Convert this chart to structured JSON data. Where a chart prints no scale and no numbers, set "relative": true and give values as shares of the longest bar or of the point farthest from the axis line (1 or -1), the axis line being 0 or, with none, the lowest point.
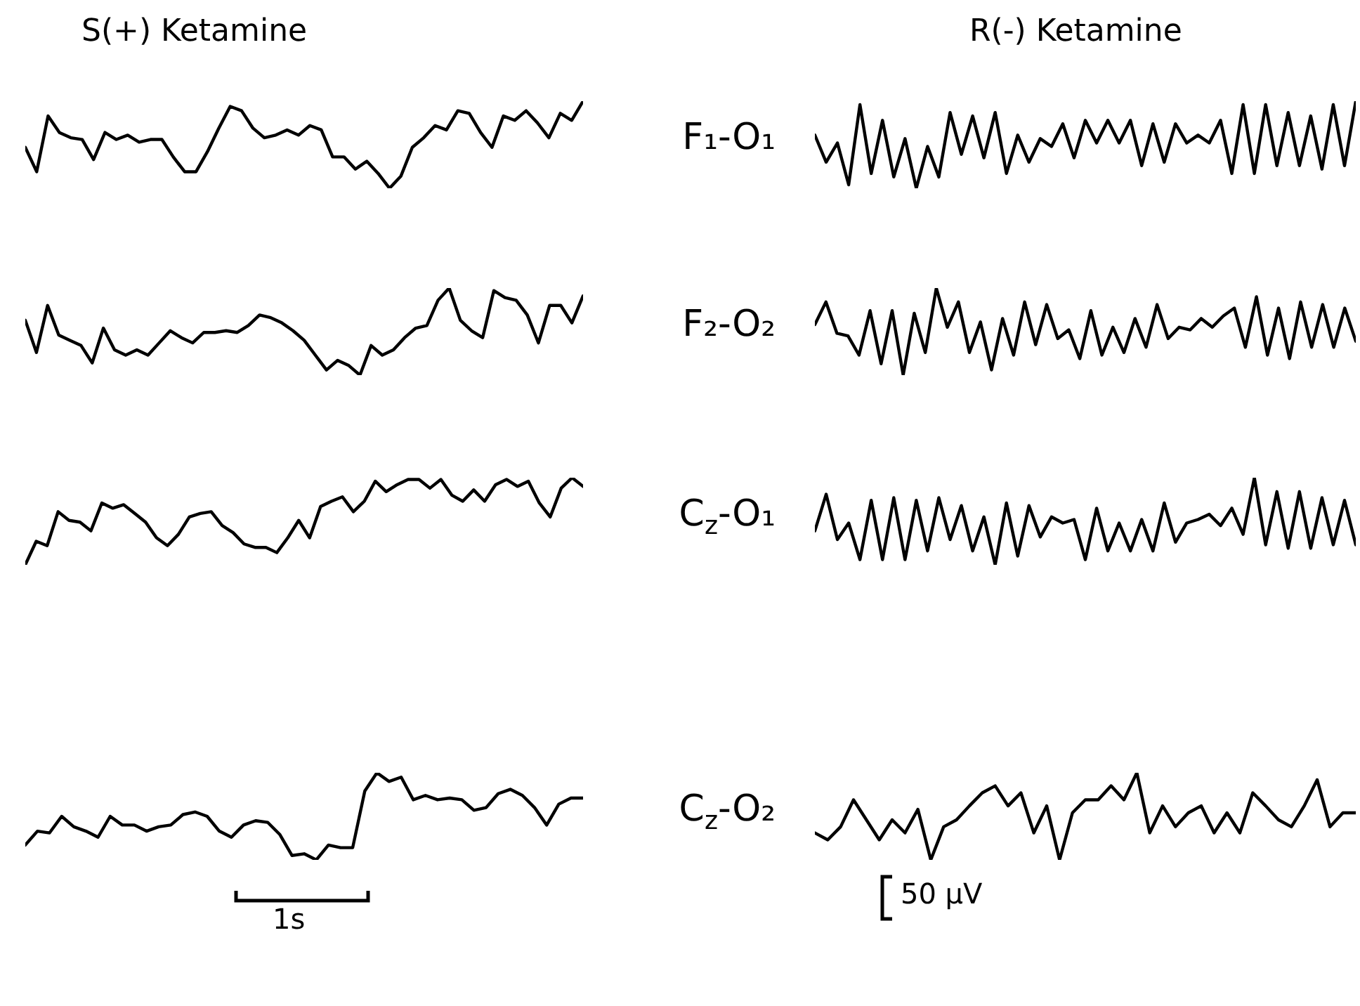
{
  "chart_data": [
    {
      "type": "line",
      "title": "S(+) Ketamine",
      "relative": true,
      "categories": [
        null,
        null,
        null,
        null,
        null,
        null,
        null,
        null,
        null,
        null,
        null,
        null,
        null,
        null,
        null,
        null,
        null,
        null,
        null,
        null,
        null,
        null,
        null,
        null,
        null,
        null,
        null,
        null,
        null,
        null,
        null,
        null,
        null,
        null,
        null,
        null,
        null,
        null,
        null,
        null,
        null,
        null,
        null,
        null,
        null,
        null,
        null,
        null,
        null,
        null
      ],
      "series": [
        {
          "color": "#000000",
          "values": [
            0.47,
            0.19,
            0.83,
            0.64,
            0.58,
            0.56,
            0.33,
            0.64,
            0.56,
            0.61,
            0.53,
            0.56,
            0.56,
            0.36,
            0.19,
            0.19,
            0.42,
            0.69,
            0.94,
            0.89,
            0.69,
            0.58,
            0.61,
            0.67,
            0.61,
            0.72,
            0.67,
            0.36,
            0.36,
            0.22,
            0.31,
            0.17,
            0,
            0.14,
            0.47,
            0.58,
            0.72,
            0.67,
            0.89,
            0.86,
            0.64,
            0.47,
            0.83,
            0.78,
            0.89,
            0.75,
            0.58,
            0.86,
            0.78,
            1
          ]
        }
      ]
    },
    {
      "type": "line",
      "title": "R(-) Ketamine",
      "ylabel": "F₁-O₁",
      "relative": true,
      "categories": [
        null,
        null,
        null,
        null,
        null,
        null,
        null,
        null,
        null,
        null,
        null,
        null,
        null,
        null,
        null,
        null,
        null,
        null,
        null,
        null,
        null,
        null,
        null,
        null,
        null,
        null,
        null,
        null,
        null,
        null,
        null,
        null,
        null,
        null,
        null,
        null,
        null,
        null,
        null,
        null,
        null,
        null,
        null,
        null,
        null,
        null,
        null,
        null,
        null
      ],
      "series": [
        {
          "color": "#000000",
          "values": [
            0.61,
            0.3,
            0.52,
            0.04,
            0.96,
            0.17,
            0.78,
            0.13,
            0.57,
            0,
            0.48,
            0.13,
            0.87,
            0.39,
            0.83,
            0.35,
            0.87,
            0.17,
            0.61,
            0.3,
            0.57,
            0.48,
            0.74,
            0.35,
            0.78,
            0.52,
            0.78,
            0.52,
            0.78,
            0.26,
            0.74,
            0.3,
            0.74,
            0.52,
            0.61,
            0.52,
            0.78,
            0.17,
            0.96,
            0.17,
            0.96,
            0.26,
            0.87,
            0.26,
            0.83,
            0.22,
            0.96,
            0.26,
            1
          ]
        }
      ]
    },
    {
      "type": "line",
      "relative": true,
      "categories": [
        null,
        null,
        null,
        null,
        null,
        null,
        null,
        null,
        null,
        null,
        null,
        null,
        null,
        null,
        null,
        null,
        null,
        null,
        null,
        null,
        null,
        null,
        null,
        null,
        null,
        null,
        null,
        null,
        null,
        null,
        null,
        null,
        null,
        null,
        null,
        null,
        null,
        null,
        null,
        null,
        null,
        null,
        null,
        null,
        null,
        null,
        null,
        null,
        null,
        null,
        null
      ],
      "series": [
        {
          "color": "#000000",
          "values": [
            0.63,
            0.26,
            0.8,
            0.46,
            0.4,
            0.34,
            0.14,
            0.54,
            0.29,
            0.23,
            0.29,
            0.23,
            0.37,
            0.51,
            0.43,
            0.37,
            0.49,
            0.49,
            0.51,
            0.49,
            0.57,
            0.69,
            0.66,
            0.6,
            0.51,
            0.4,
            0.23,
            0.06,
            0.17,
            0.11,
            0,
            0.34,
            0.23,
            0.29,
            0.43,
            0.54,
            0.57,
            0.86,
            1,
            0.63,
            0.51,
            0.43,
            0.97,
            0.89,
            0.86,
            0.69,
            0.37,
            0.8,
            0.8,
            0.6,
            0.91
          ]
        }
      ]
    },
    {
      "type": "line",
      "ylabel": "F₂-O₂",
      "relative": true,
      "categories": [
        null,
        null,
        null,
        null,
        null,
        null,
        null,
        null,
        null,
        null,
        null,
        null,
        null,
        null,
        null,
        null,
        null,
        null,
        null,
        null,
        null,
        null,
        null,
        null,
        null,
        null,
        null,
        null,
        null,
        null,
        null,
        null,
        null,
        null,
        null,
        null,
        null,
        null,
        null,
        null,
        null,
        null,
        null,
        null,
        null,
        null,
        null,
        null,
        null,
        null
      ],
      "series": [
        {
          "color": "#000000",
          "values": [
            0.58,
            0.84,
            0.48,
            0.45,
            0.23,
            0.74,
            0.13,
            0.74,
            0,
            0.71,
            0.26,
            1,
            0.55,
            0.84,
            0.26,
            0.61,
            0.06,
            0.65,
            0.23,
            0.84,
            0.35,
            0.81,
            0.42,
            0.52,
            0.19,
            0.74,
            0.23,
            0.55,
            0.26,
            0.65,
            0.32,
            0.81,
            0.42,
            0.55,
            0.52,
            0.65,
            0.55,
            0.68,
            0.77,
            0.32,
            0.9,
            0.23,
            0.77,
            0.19,
            0.84,
            0.32,
            0.81,
            0.32,
            0.77,
            0.39
          ]
        }
      ]
    },
    {
      "type": "line",
      "relative": true,
      "categories": [
        null,
        null,
        null,
        null,
        null,
        null,
        null,
        null,
        null,
        null,
        null,
        null,
        null,
        null,
        null,
        null,
        null,
        null,
        null,
        null,
        null,
        null,
        null,
        null,
        null,
        null,
        null,
        null,
        null,
        null,
        null,
        null,
        null,
        null,
        null,
        null,
        null,
        null,
        null,
        null,
        null,
        null,
        null,
        null,
        null,
        null,
        null,
        null,
        null,
        null,
        null,
        null
      ],
      "series": [
        {
          "color": "#000000",
          "values": [
            0,
            0.27,
            0.22,
            0.61,
            0.51,
            0.49,
            0.39,
            0.71,
            0.65,
            0.69,
            0.59,
            0.49,
            0.31,
            0.22,
            0.35,
            0.55,
            0.59,
            0.61,
            0.45,
            0.37,
            0.24,
            0.2,
            0.2,
            0.14,
            0.31,
            0.51,
            0.31,
            0.67,
            0.73,
            0.78,
            0.61,
            0.73,
            0.96,
            0.84,
            0.92,
            0.98,
            0.98,
            0.88,
            0.98,
            0.8,
            0.73,
            0.86,
            0.73,
            0.92,
            0.98,
            0.9,
            0.96,
            0.71,
            0.55,
            0.88,
            1,
            0.9
          ]
        }
      ]
    },
    {
      "type": "line",
      "ylabel": "C$_{z}$-O₁",
      "relative": true,
      "categories": [
        null,
        null,
        null,
        null,
        null,
        null,
        null,
        null,
        null,
        null,
        null,
        null,
        null,
        null,
        null,
        null,
        null,
        null,
        null,
        null,
        null,
        null,
        null,
        null,
        null,
        null,
        null,
        null,
        null,
        null,
        null,
        null,
        null,
        null,
        null,
        null,
        null,
        null,
        null,
        null,
        null,
        null,
        null,
        null,
        null,
        null,
        null,
        null,
        null
      ],
      "series": [
        {
          "color": "#000000",
          "values": [
            0.39,
            0.81,
            0.29,
            0.48,
            0.06,
            0.74,
            0.06,
            0.77,
            0.06,
            0.74,
            0.16,
            0.77,
            0.29,
            0.68,
            0.16,
            0.55,
            0,
            0.71,
            0.1,
            0.68,
            0.32,
            0.55,
            0.48,
            0.52,
            0.06,
            0.65,
            0.16,
            0.48,
            0.16,
            0.52,
            0.16,
            0.71,
            0.26,
            0.48,
            0.52,
            0.58,
            0.45,
            0.65,
            0.35,
            1,
            0.23,
            0.84,
            0.19,
            0.84,
            0.19,
            0.77,
            0.23,
            0.74,
            0.23
          ]
        }
      ]
    },
    {
      "type": "line",
      "relative": true,
      "annotations": [
        "1s"
      ],
      "categories": [
        null,
        null,
        null,
        null,
        null,
        null,
        null,
        null,
        null,
        null,
        null,
        null,
        null,
        null,
        null,
        null,
        null,
        null,
        null,
        null,
        null,
        null,
        null,
        null,
        null,
        null,
        null,
        null,
        null,
        null,
        null,
        null,
        null,
        null,
        null,
        null,
        null,
        null,
        null,
        null,
        null,
        null,
        null,
        null,
        null,
        null,
        null
      ],
      "series": [
        {
          "color": "#000000",
          "values": [
            0.17,
            0.33,
            0.31,
            0.5,
            0.38,
            0.33,
            0.26,
            0.5,
            0.4,
            0.4,
            0.33,
            0.38,
            0.4,
            0.52,
            0.55,
            0.5,
            0.33,
            0.26,
            0.4,
            0.45,
            0.43,
            0.29,
            0.05,
            0.07,
            0,
            0.17,
            0.14,
            0.14,
            0.79,
            1,
            0.9,
            0.95,
            0.69,
            0.74,
            0.69,
            0.71,
            0.69,
            0.57,
            0.6,
            0.76,
            0.81,
            0.74,
            0.6,
            0.4,
            0.64,
            0.71,
            0.71
          ]
        }
      ]
    },
    {
      "type": "line",
      "ylabel": "C$_{z}$-O₂",
      "relative": true,
      "annotations": [
        "50 µV"
      ],
      "categories": [
        null,
        null,
        null,
        null,
        null,
        null,
        null,
        null,
        null,
        null,
        null,
        null,
        null,
        null,
        null,
        null,
        null,
        null,
        null,
        null,
        null,
        null,
        null,
        null,
        null,
        null,
        null,
        null,
        null,
        null,
        null,
        null,
        null,
        null,
        null,
        null,
        null,
        null,
        null,
        null,
        null,
        null,
        null
      ],
      "series": [
        {
          "color": "#000000",
          "values": [
            0.31,
            0.23,
            0.38,
            0.69,
            0.46,
            0.23,
            0.46,
            0.31,
            0.58,
            0,
            0.38,
            0.46,
            0.62,
            0.77,
            0.85,
            0.62,
            0.77,
            0.31,
            0.62,
            0,
            0.54,
            0.69,
            0.69,
            0.85,
            0.69,
            1,
            0.31,
            0.62,
            0.38,
            0.54,
            0.62,
            0.31,
            0.54,
            0.31,
            0.77,
            0.62,
            0.46,
            0.38,
            0.62,
            0.92,
            0.38,
            0.54,
            0.54
          ]
        }
      ]
    }
  ]
}
